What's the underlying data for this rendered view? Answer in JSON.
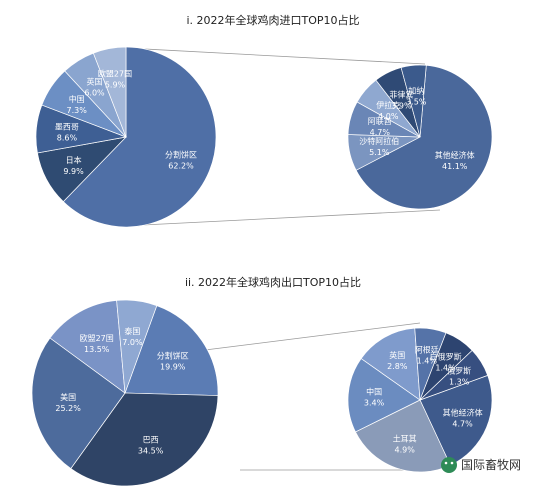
{
  "chart_data": [
    {
      "type": "pie",
      "title": "i. 2022年全球鸡肉进口TOP10占比",
      "main": {
        "slices": [
          {
            "label": "分割饼区",
            "value_label": "62.2%",
            "value": 62.2,
            "color": "#4f6fa6"
          },
          {
            "label": "日本",
            "value_label": "9.9%",
            "value": 9.9,
            "color": "#2f4b72"
          },
          {
            "label": "墨西哥",
            "value_label": "8.6%",
            "value": 8.6,
            "color": "#3e5f94"
          },
          {
            "label": "中国",
            "value_label": "7.3%",
            "value": 7.3,
            "color": "#6c8fc4"
          },
          {
            "label": "英国",
            "value_label": "6.0%",
            "value": 6.0,
            "color": "#8aa5cf"
          },
          {
            "label": "欧盟27国",
            "value_label": "5.9%",
            "value": 5.9,
            "color": "#a3b7d8"
          }
        ]
      },
      "detail": {
        "slices": [
          {
            "label": "其他经济体",
            "value_label": "41.1%",
            "value": 41.1,
            "color": "#4a689b"
          },
          {
            "label": "沙特阿拉伯",
            "value_label": "5.1%",
            "value": 5.1,
            "color": "#7b95c0"
          },
          {
            "label": "阿联酋",
            "value_label": "4.7%",
            "value": 4.7,
            "color": "#6a86b6"
          },
          {
            "label": "伊拉克",
            "value_label": "4.0%",
            "value": 4.0,
            "color": "#8fa8d0"
          },
          {
            "label": "菲律宾",
            "value_label": "3.9%",
            "value": 3.9,
            "color": "#2f4a75"
          },
          {
            "label": "加纳",
            "value_label": "3.5%",
            "value": 3.5,
            "color": "#3b5a8c"
          }
        ]
      }
    },
    {
      "type": "pie",
      "title": "ii. 2022年全球鸡肉出口TOP10占比",
      "main": {
        "slices": [
          {
            "label": "分割饼区",
            "value_label": "19.9%",
            "value": 19.9,
            "color": "#5b7cb4"
          },
          {
            "label": "巴西",
            "value_label": "34.5%",
            "value": 34.5,
            "color": "#2f4466"
          },
          {
            "label": "美国",
            "value_label": "25.2%",
            "value": 25.2,
            "color": "#4d6b9c"
          },
          {
            "label": "欧盟27国",
            "value_label": "13.5%",
            "value": 13.5,
            "color": "#7a93c6"
          },
          {
            "label": "泰国",
            "value_label": "7.0%",
            "value": 7.0,
            "color": "#8fa8d2"
          }
        ]
      },
      "detail": {
        "slices": [
          {
            "label": "其他经济体",
            "value_label": "4.7%",
            "value": 4.7,
            "color": "#3e5a8c"
          },
          {
            "label": "土耳其",
            "value_label": "4.9%",
            "value": 4.9,
            "color": "#8a9bb8"
          },
          {
            "label": "中国",
            "value_label": "3.4%",
            "value": 3.4,
            "color": "#6b8cc0"
          },
          {
            "label": "英国",
            "value_label": "2.8%",
            "value": 2.8,
            "color": "#7f9bcc"
          },
          {
            "label": "阿根廷",
            "value_label": "1.4%",
            "value": 1.4,
            "color": "#5573a8"
          },
          {
            "label": "白俄罗斯",
            "value_label": "1.4%",
            "value": 1.4,
            "color": "#2d4470"
          },
          {
            "label": "俄罗斯",
            "value_label": "1.3%",
            "value": 1.3,
            "color": "#374f80"
          }
        ]
      }
    }
  ],
  "watermark": {
    "text": "国际畜牧网",
    "icon": "wechat-icon",
    "color": "#2e8b57"
  }
}
